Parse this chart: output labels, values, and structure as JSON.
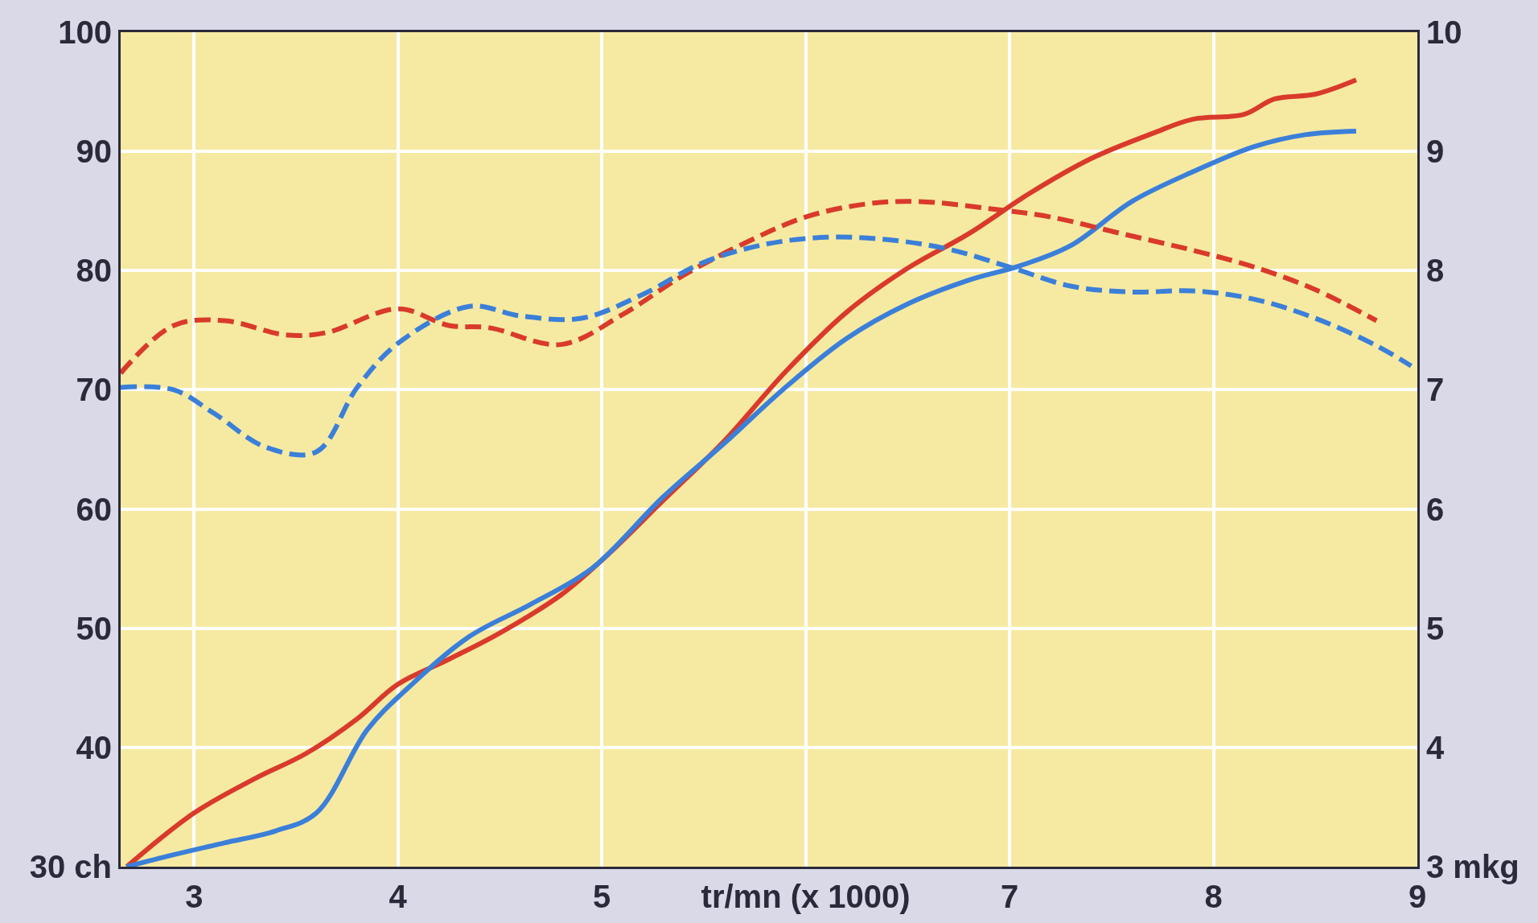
{
  "chart_data": {
    "type": "line",
    "xlim": [
      2.64,
      9
    ],
    "xticks": [
      3,
      4,
      5,
      {
        "value": 6,
        "label": "tr/mn (x 1000)"
      },
      7,
      8,
      9
    ],
    "ylim": [
      30,
      100
    ],
    "yticks": [
      {
        "value": 30,
        "label": "30 ch"
      },
      40,
      50,
      60,
      70,
      80,
      90,
      100
    ],
    "y2lim": [
      3,
      10
    ],
    "y2ticks": [
      {
        "value": 3,
        "label": "3 mkg"
      },
      4,
      5,
      6,
      7,
      8,
      9,
      10
    ],
    "grid": true,
    "marker": "none",
    "series": [
      {
        "color": "#d93a2b",
        "line_style": "solid",
        "x": [
          2.67,
          3.0,
          3.3,
          3.55,
          3.8,
          4.0,
          4.25,
          4.5,
          4.8,
          5.0,
          5.3,
          5.6,
          5.9,
          6.2,
          6.5,
          6.8,
          7.1,
          7.4,
          7.7,
          7.9,
          8.15,
          8.3,
          8.5,
          8.7
        ],
        "values": [
          30,
          34.5,
          37.4,
          39.5,
          42.4,
          45.3,
          47.4,
          49.6,
          52.8,
          55.7,
          60.7,
          65.7,
          71.5,
          76.5,
          80.2,
          83.1,
          86.5,
          89.4,
          91.5,
          92.7,
          93.1,
          94.4,
          94.8,
          96.0
        ]
      },
      {
        "color": "#3b7fd9",
        "line_style": "solid",
        "x": [
          2.67,
          2.9,
          3.15,
          3.4,
          3.6,
          3.85,
          4.05,
          4.35,
          4.65,
          4.95,
          5.3,
          5.6,
          5.9,
          6.2,
          6.5,
          6.8,
          7.05,
          7.3,
          7.6,
          7.9,
          8.2,
          8.45,
          8.7
        ],
        "values": [
          30,
          31,
          32,
          33,
          34.5,
          41.5,
          45,
          49.3,
          52,
          55,
          61,
          65.5,
          70.2,
          74.3,
          77.2,
          79.2,
          80.4,
          82.1,
          85.8,
          88.3,
          90.4,
          91.4,
          91.7
        ]
      },
      {
        "color": "#d93a2b",
        "line_style": "dashed",
        "axis": "y2",
        "x": [
          2.64,
          2.9,
          3.15,
          3.45,
          3.65,
          4.0,
          4.25,
          4.45,
          4.8,
          5.1,
          5.4,
          5.7,
          6.0,
          6.3,
          6.55,
          6.9,
          7.2,
          7.55,
          7.9,
          8.2,
          8.5,
          8.8
        ],
        "values": [
          7.14,
          7.54,
          7.58,
          7.46,
          7.48,
          7.68,
          7.54,
          7.52,
          7.38,
          7.63,
          7.96,
          8.23,
          8.45,
          8.56,
          8.58,
          8.52,
          8.45,
          8.31,
          8.17,
          8.03,
          7.84,
          7.58
        ]
      },
      {
        "color": "#3b7fd9",
        "line_style": "dashed",
        "axis": "y2",
        "x": [
          2.64,
          2.9,
          3.1,
          3.35,
          3.6,
          3.8,
          4.0,
          4.35,
          4.6,
          4.9,
          5.2,
          5.5,
          5.8,
          6.1,
          6.4,
          6.7,
          7.0,
          7.3,
          7.6,
          7.9,
          8.2,
          8.5,
          8.8,
          8.97
        ],
        "values": [
          7.02,
          7.0,
          6.8,
          6.52,
          6.48,
          7.02,
          7.39,
          7.7,
          7.62,
          7.6,
          7.8,
          8.07,
          8.22,
          8.28,
          8.26,
          8.18,
          8.03,
          7.87,
          7.82,
          7.83,
          7.76,
          7.6,
          7.37,
          7.2
        ]
      }
    ]
  }
}
